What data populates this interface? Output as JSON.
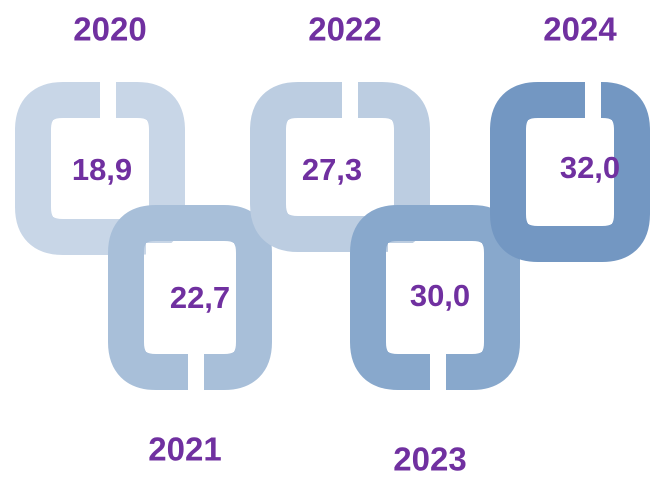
{
  "items": [
    {
      "year": "2020",
      "value": "18,9"
    },
    {
      "year": "2021",
      "value": "22,7"
    },
    {
      "year": "2022",
      "value": "27,3"
    },
    {
      "year": "2023",
      "value": "30,0"
    },
    {
      "year": "2024",
      "value": "32,0"
    }
  ]
}
